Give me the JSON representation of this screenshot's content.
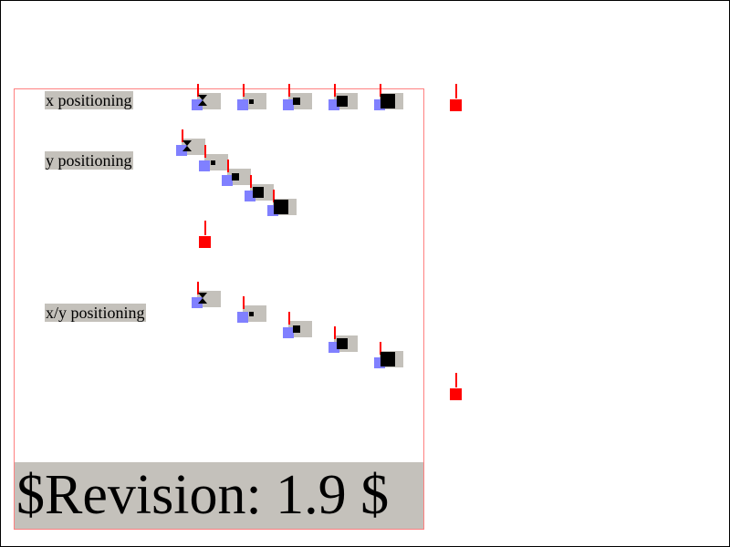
{
  "labels": {
    "x": "x positioning",
    "y": "y positioning",
    "xy": "x/y positioning"
  },
  "revision": "$Revision: 1.9 $",
  "colors": {
    "frame": "#000000",
    "test_area_border": "#ff8080",
    "label_background": "#c4c1bb",
    "reference_square": "#8080ff",
    "reference_line": "#ff0000",
    "marker": "#000000",
    "overflow_marker": "#ff0000"
  },
  "icons": {
    "marker_first": "hourglass-icon",
    "marker_other": "black-square-icon"
  }
}
